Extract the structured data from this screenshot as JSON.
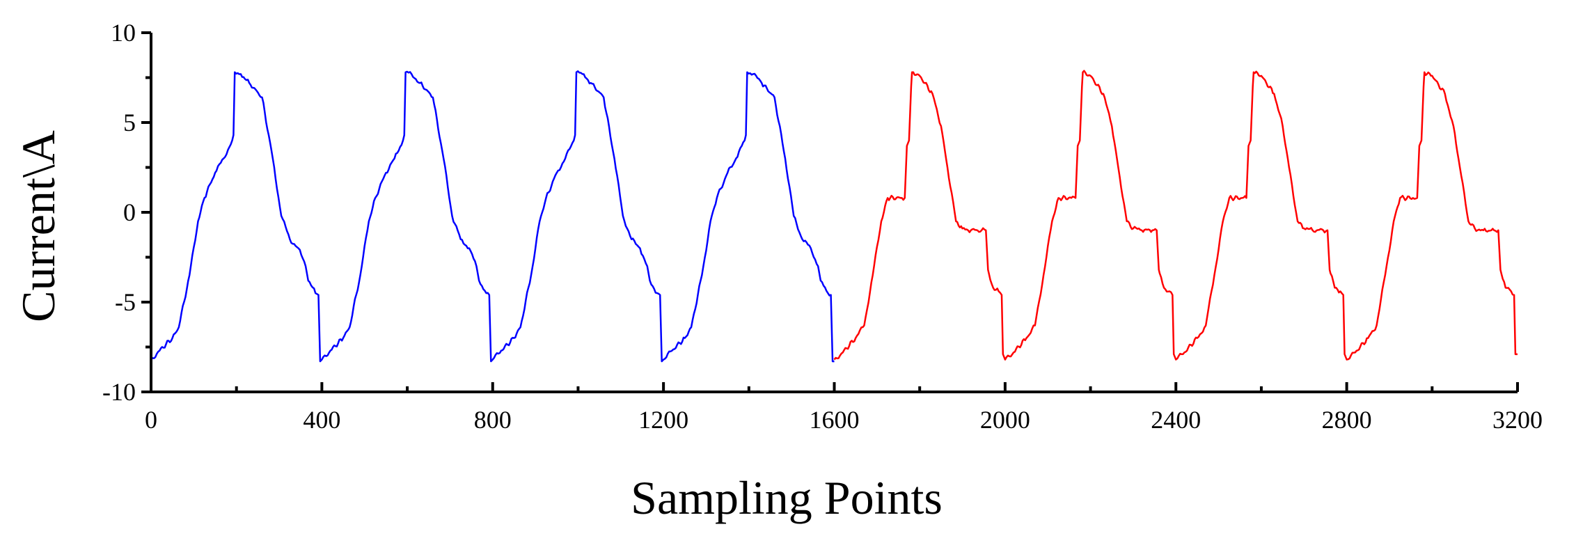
{
  "chart_data": {
    "type": "line",
    "title": "",
    "xlabel": "Sampling Points",
    "ylabel": "Current\\A",
    "xlim": [
      0,
      3200
    ],
    "ylim": [
      -10,
      10
    ],
    "x_ticks": [
      0,
      400,
      800,
      1200,
      1600,
      2000,
      2400,
      2800,
      3200
    ],
    "x_tick_labels": [
      "0",
      "400",
      "800",
      "1200",
      "1600",
      "2000",
      "2400",
      "2800",
      "3200"
    ],
    "y_ticks": [
      -10,
      -5,
      0,
      5,
      10
    ],
    "y_tick_labels": [
      "-10",
      "-5",
      "0",
      "5",
      "10"
    ],
    "grid": false,
    "legend": "none",
    "series": [
      {
        "color": "#0000ff",
        "x_start": 0,
        "x_end": 1600,
        "period": 400,
        "cycle": {
          "x": [
            0,
            20,
            50,
            65,
            90,
            110,
            125,
            150,
            170,
            190,
            193,
            196,
            210,
            230,
            260,
            285,
            305,
            325,
            345,
            362,
            368,
            385,
            392,
            396
          ],
          "y": [
            -8.2,
            -7.7,
            -7.0,
            -6.4,
            -3.5,
            -0.5,
            0.8,
            2.2,
            3.0,
            4.0,
            4.3,
            7.8,
            7.7,
            7.2,
            6.4,
            3.0,
            -0.2,
            -1.5,
            -2.0,
            -3.0,
            -3.8,
            -4.5,
            -4.6,
            -8.3
          ]
        }
      },
      {
        "color": "#ff0000",
        "x_start": 1600,
        "x_end": 3200,
        "period": 400,
        "cycle": {
          "x": [
            0,
            20,
            50,
            70,
            90,
            110,
            125,
            155,
            165,
            170,
            175,
            180,
            182,
            200,
            230,
            250,
            265,
            285,
            300,
            320,
            345,
            355,
            360,
            362,
            372,
            385,
            392,
            395
          ],
          "y": [
            -8.2,
            -7.8,
            -7.0,
            -6.3,
            -3.5,
            -0.5,
            0.8,
            0.8,
            0.8,
            3.7,
            4.0,
            7.0,
            7.8,
            7.6,
            6.6,
            4.8,
            2.5,
            -0.5,
            -0.9,
            -1.0,
            -1.0,
            -1.0,
            -3.2,
            -3.4,
            -4.2,
            -4.4,
            -4.6,
            -7.9
          ]
        }
      }
    ]
  }
}
